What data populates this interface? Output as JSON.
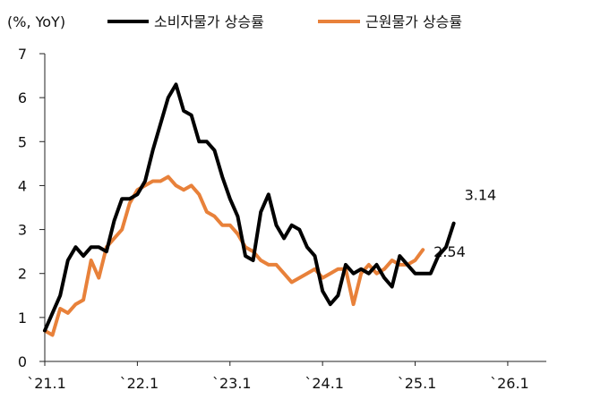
{
  "chart_data": {
    "type": "line",
    "unit_label": "(%, YoY)",
    "ylim": [
      0,
      7
    ],
    "yticks": [
      "0",
      "1",
      "2",
      "3",
      "4",
      "5",
      "6",
      "7"
    ],
    "xlim": [
      0,
      65
    ],
    "xticks": [
      {
        "label": "`21.1",
        "x": 0
      },
      {
        "label": "`22.1",
        "x": 12
      },
      {
        "label": "`23.1",
        "x": 24
      },
      {
        "label": "`24.1",
        "x": 36
      },
      {
        "label": "`25.1",
        "x": 48
      },
      {
        "label": "`26.1",
        "x": 60
      }
    ],
    "legend_position": "top",
    "series": [
      {
        "name": "소비자물가 상승률",
        "color": "#000000",
        "end_label": "3.14",
        "values": [
          0.7,
          1.1,
          1.5,
          2.3,
          2.6,
          2.4,
          2.6,
          2.6,
          2.5,
          3.2,
          3.7,
          3.7,
          3.8,
          4.1,
          4.8,
          5.4,
          6.0,
          6.3,
          5.7,
          5.6,
          5.0,
          5.0,
          4.8,
          4.2,
          3.7,
          3.3,
          2.4,
          2.3,
          3.4,
          3.8,
          3.1,
          2.8,
          3.1,
          3.0,
          2.6,
          2.4,
          1.6,
          1.3,
          1.5,
          2.2,
          2.0,
          2.1,
          2.0,
          2.2,
          1.9,
          1.7,
          2.4,
          2.2,
          2.0,
          2.0,
          2.0,
          2.4,
          2.6,
          3.14
        ]
      },
      {
        "name": "근원물가 상승률",
        "color": "#E8813A",
        "end_label": "2.54",
        "values": [
          0.7,
          0.6,
          1.2,
          1.1,
          1.3,
          1.4,
          2.3,
          1.9,
          2.6,
          2.8,
          3.0,
          3.6,
          3.9,
          4.0,
          4.1,
          4.1,
          4.2,
          4.0,
          3.9,
          4.0,
          3.8,
          3.4,
          3.3,
          3.1,
          3.1,
          2.9,
          2.6,
          2.5,
          2.3,
          2.2,
          2.2,
          2.0,
          1.8,
          1.9,
          2.0,
          2.1,
          1.9,
          2.0,
          2.1,
          2.1,
          1.3,
          2.0,
          2.2,
          2.0,
          2.1,
          2.3,
          2.2,
          2.2,
          2.3,
          2.54
        ]
      }
    ]
  }
}
